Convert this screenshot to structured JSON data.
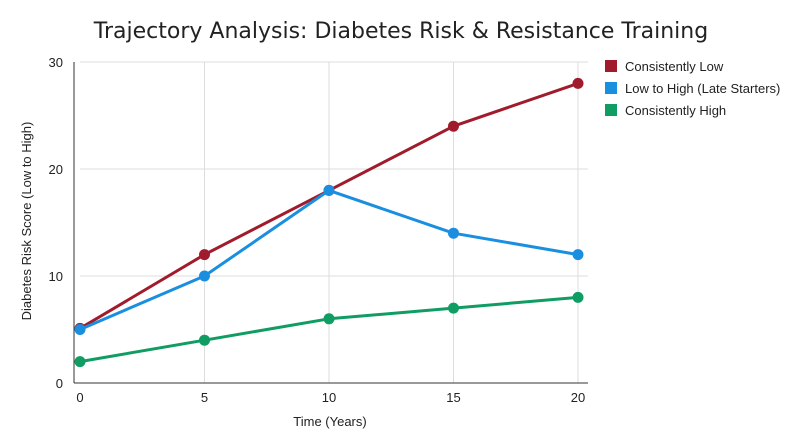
{
  "chart_data": {
    "type": "line",
    "title": "Trajectory Analysis: Diabetes Risk & Resistance Training",
    "xlabel": "Time (Years)",
    "ylabel": "Diabetes Risk Score (Low to High)",
    "x": [
      0,
      5,
      10,
      15,
      20
    ],
    "xlim": [
      0,
      20
    ],
    "ylim": [
      0,
      30
    ],
    "x_ticks": [
      "0",
      "5",
      "10",
      "15",
      "20"
    ],
    "y_ticks": [
      "0",
      "10",
      "20",
      "30"
    ],
    "grid": true,
    "legend_position": "right",
    "series": [
      {
        "name": "Consistently Low",
        "color": "#a01c2c",
        "values": [
          5.1,
          12,
          18,
          24,
          28
        ]
      },
      {
        "name": "Low to High (Late Starters)",
        "color": "#1a8fe0",
        "values": [
          5,
          10,
          18,
          14,
          12
        ]
      },
      {
        "name": "Consistently High",
        "color": "#0f9d64",
        "values": [
          2,
          4,
          6,
          7,
          8
        ]
      }
    ]
  }
}
